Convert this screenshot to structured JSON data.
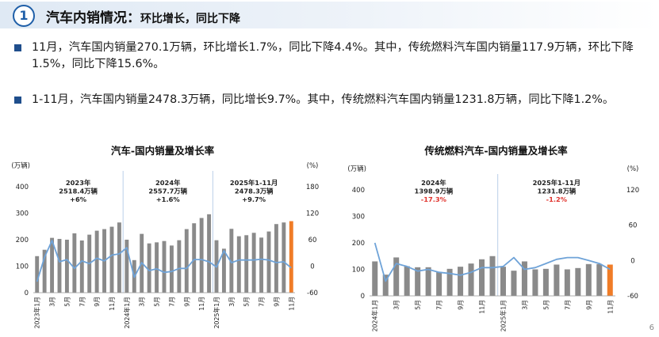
{
  "header": {
    "section_number": "1",
    "title_main": "汽车内销情况：",
    "title_sub": "环比增长，同比下降"
  },
  "bullets": [
    "11月，汽车国内销量270.1万辆，环比增长1.7%，同比下降4.4%。其中，传统燃料汽车国内销量117.9万辆，环比下降1.5%，同比下降15.6%。",
    "1-11月，汽车国内销量2478.3万辆，同比增长9.7%。其中，传统燃料汽车国内销量1231.8万辆，同比下降1.2%。"
  ],
  "page_number": "6",
  "colors": {
    "accent": "#1f5fa8",
    "bar": "#8a8a8a",
    "bar_highlight": "#f07c27",
    "line": "#6fa3d8",
    "negative_text": "#e0312b",
    "divider": "#a9c3e3"
  },
  "chart_data": [
    {
      "type": "bar",
      "title": "汽车-国内销量及增长率",
      "ylabel_left": "(万辆)",
      "ylabel_right": "(%)",
      "ylim_left": [
        0,
        400
      ],
      "ylim_right": [
        -60,
        180
      ],
      "yticks_left": [
        "0",
        "100",
        "200",
        "300",
        "400"
      ],
      "yticks_right": [
        "-60",
        "0",
        "60",
        "120",
        "180"
      ],
      "xtick_labels": [
        "2023年1月",
        "3月",
        "5月",
        "7月",
        "9月",
        "11月",
        "2024年1月",
        "3月",
        "5月",
        "7月",
        "9月",
        "11月",
        "2025年1月",
        "3月",
        "5月",
        "7月",
        "9月",
        "11月"
      ],
      "xtick_indices": [
        0,
        2,
        4,
        6,
        8,
        10,
        12,
        14,
        16,
        18,
        20,
        22,
        24,
        26,
        28,
        30,
        32,
        34
      ],
      "dividers_after_index": [
        11,
        23
      ],
      "highlight_index": 34,
      "annotations": [
        {
          "lines": [
            "2023年",
            "2518.4万辆",
            "+6%"
          ],
          "center_index": 5.5,
          "negative": false
        },
        {
          "lines": [
            "2024年",
            "2557.7万辆",
            "+1.6%"
          ],
          "center_index": 17.5,
          "negative": false
        },
        {
          "lines": [
            "2025年1-11月",
            "2478.3万辆",
            "+9.7%"
          ],
          "center_index": 29,
          "negative": false
        }
      ],
      "series": [
        {
          "kind": "bar",
          "values": [
            138,
            162,
            207,
            203,
            200,
            224,
            197,
            219,
            234,
            240,
            249,
            265,
            200,
            123,
            222,
            186,
            190,
            195,
            178,
            198,
            240,
            262,
            282,
            296,
            198,
            166,
            241,
            213,
            217,
            226,
            208,
            231,
            259,
            265,
            270
          ]
        },
        {
          "kind": "line",
          "values": [
            -35,
            20,
            58,
            10,
            15,
            -5,
            12,
            6,
            18,
            12,
            25,
            28,
            42,
            -25,
            8,
            -10,
            -6,
            -14,
            -12,
            -5,
            -5,
            15,
            15,
            10,
            -2,
            35,
            8,
            14,
            14,
            14,
            16,
            14,
            8,
            10,
            -4
          ]
        }
      ]
    },
    {
      "type": "bar",
      "title": "传统燃料汽车-国内销量及增长率",
      "ylabel_left": "(万辆)",
      "ylabel_right": "(%)",
      "ylim_left": [
        0,
        400
      ],
      "ylim_right": [
        -60,
        120
      ],
      "yticks_left": [
        "0",
        "100",
        "200",
        "300",
        "400"
      ],
      "yticks_right": [
        "-60",
        "0",
        "60",
        "120"
      ],
      "xtick_labels": [
        "2024年1月",
        "3月",
        "5月",
        "7月",
        "9月",
        "11月",
        "2025年1月",
        "3月",
        "5月",
        "7月",
        "9月",
        "11月"
      ],
      "xtick_indices": [
        0,
        2,
        4,
        6,
        8,
        10,
        12,
        14,
        16,
        18,
        20,
        22
      ],
      "dividers_after_index": [
        11
      ],
      "highlight_index": 22,
      "annotations": [
        {
          "lines": [
            "2024年",
            "1398.9万辆",
            "-17.3%"
          ],
          "center_index": 5.5,
          "negative": true
        },
        {
          "lines": [
            "2025年1-11月",
            "1231.8万辆",
            "-1.2%"
          ],
          "center_index": 17,
          "negative": true
        }
      ],
      "series": [
        {
          "kind": "bar",
          "values": [
            130,
            80,
            145,
            112,
            108,
            108,
            90,
            102,
            110,
            122,
            138,
            150,
            110,
            95,
            130,
            100,
            102,
            118,
            100,
            105,
            120,
            120,
            118
          ]
        },
        {
          "kind": "line",
          "values": [
            30,
            -35,
            -5,
            -10,
            -18,
            -15,
            -20,
            -22,
            -25,
            -20,
            -12,
            -12,
            -10,
            5,
            -15,
            -12,
            -5,
            2,
            5,
            5,
            0,
            -5,
            -15
          ]
        }
      ]
    }
  ]
}
